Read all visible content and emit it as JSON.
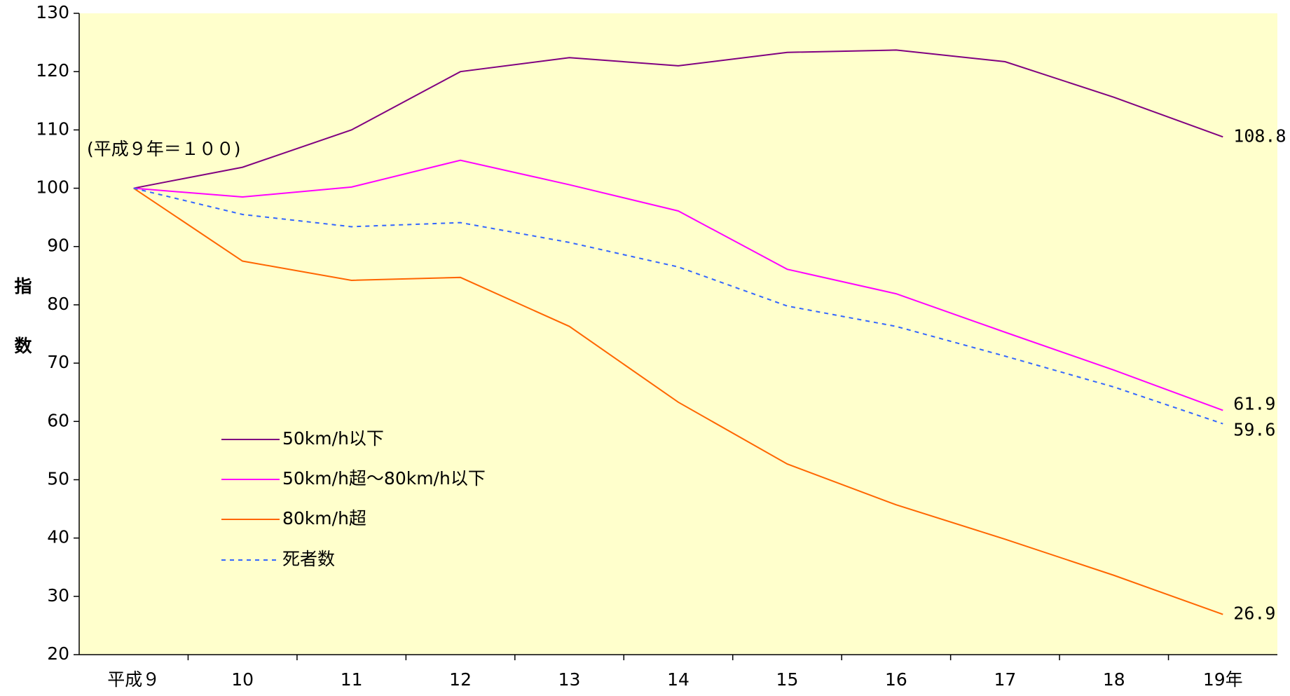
{
  "chart_data": {
    "type": "line",
    "annotation": "(平成９年＝１００)",
    "ylabel": "指数",
    "categories": [
      "平成９",
      "10",
      "11",
      "12",
      "13",
      "14",
      "15",
      "16",
      "17",
      "18",
      "19年"
    ],
    "series": [
      {
        "name": "50km/h以下",
        "color": "#800080",
        "dash": false,
        "values": [
          100,
          103.6,
          110,
          120,
          122.4,
          121,
          123.3,
          123.7,
          121.7,
          115.6,
          108.8
        ]
      },
      {
        "name": "50km/h超～80km/h以下",
        "color": "#ff00ff",
        "dash": false,
        "values": [
          100,
          98.5,
          100.2,
          104.8,
          100.6,
          96.1,
          86.1,
          81.9,
          75.3,
          68.8,
          61.9
        ]
      },
      {
        "name": "80km/h超",
        "color": "#ff6600",
        "dash": false,
        "values": [
          100,
          87.5,
          84.2,
          84.7,
          76.3,
          63.3,
          52.7,
          45.7,
          39.8,
          33.6,
          26.9
        ]
      },
      {
        "name": "死者数",
        "color": "#3366ff",
        "dash": true,
        "values": [
          100,
          95.5,
          93.4,
          94.1,
          90.7,
          86.5,
          79.8,
          76.3,
          71.2,
          65.9,
          59.6
        ]
      }
    ],
    "ylim": [
      20,
      130
    ],
    "yticks": [
      20,
      30,
      40,
      50,
      60,
      70,
      80,
      90,
      100,
      110,
      120,
      130
    ],
    "grid": false,
    "background": "#ffffcc"
  }
}
